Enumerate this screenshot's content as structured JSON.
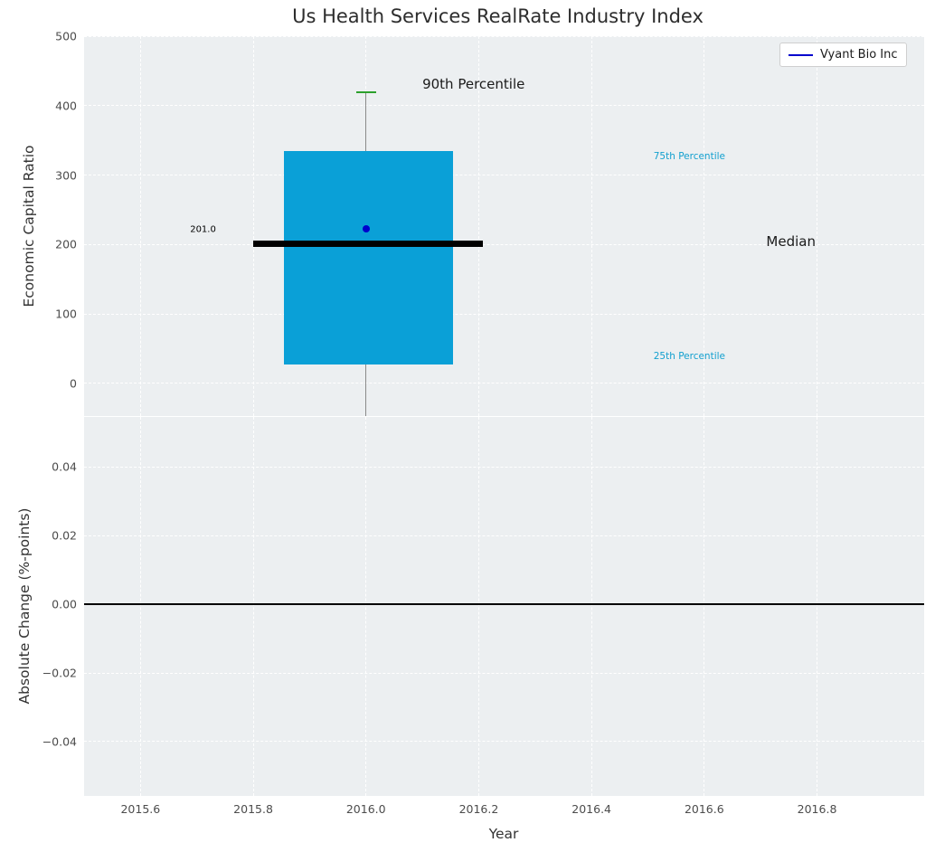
{
  "title": "Us Health Services RealRate Industry Index",
  "legend": {
    "label": "Vyant Bio Inc",
    "line_color": "#0000cd"
  },
  "colors": {
    "plot_bg": "#eceff1",
    "grid": "#ffffff",
    "box_fill": "#0aa0d7",
    "median_line": "#000000",
    "whisker": "#8a8a8a",
    "p90_cap": "#2ca02c",
    "company_point": "#0000cd",
    "percentile_text": "#13a0cf",
    "zero_line": "#000000"
  },
  "chart_data": [
    {
      "type": "boxplot",
      "title": "Us Health Services RealRate Industry Index",
      "ylabel": "Economic Capital Ratio",
      "legend_entry": "Vyant Bio Inc",
      "xlim": [
        2015.5,
        2016.99
      ],
      "ylim": [
        -47,
        500
      ],
      "yticks": [
        500,
        400,
        300,
        200,
        100,
        0
      ],
      "ytick_labels": [
        "500",
        "400",
        "300",
        "200",
        "100",
        "0"
      ],
      "grid": true,
      "box": {
        "x_center": 2016.0,
        "x_left": 2015.855,
        "x_right": 2016.155,
        "q1": 27,
        "median": 201.0,
        "q3": 335,
        "p90": 419,
        "whisker_extends_below_axis": true,
        "median_x_left": 2015.8,
        "median_x_right": 2016.207,
        "company_point": {
          "label": "Vyant Bio Inc",
          "x": 2016.0,
          "y": 223
        }
      },
      "annotations": [
        {
          "text": "201.0",
          "x": 2015.688,
          "y": 221,
          "color": "#000000",
          "size": 10
        },
        {
          "text": "90th Percentile",
          "x": 2016.1,
          "y": 431,
          "color": "#1a1a1a",
          "size": 15
        },
        {
          "text": "75th Percentile",
          "x": 2016.51,
          "y": 327,
          "color": "#13a0cf",
          "size": 10.5
        },
        {
          "text": "Median",
          "x": 2016.71,
          "y": 204,
          "color": "#1a1a1a",
          "size": 15
        },
        {
          "text": "25th Percentile",
          "x": 2016.51,
          "y": 39,
          "color": "#13a0cf",
          "size": 10.5
        }
      ]
    },
    {
      "type": "line",
      "ylabel": "Absolute Change (%-points)",
      "xlabel": "Year",
      "xlim": [
        2015.5,
        2016.99
      ],
      "ylim": [
        -0.0558,
        0.0545
      ],
      "yticks": [
        0.04,
        0.02,
        0,
        -0.02,
        -0.04
      ],
      "ytick_labels": [
        "0.04",
        "0.02",
        "0.00",
        "−0.02",
        "−0.04"
      ],
      "xticks": [
        2015.6,
        2015.8,
        2016.0,
        2016.2,
        2016.4,
        2016.6,
        2016.8
      ],
      "xtick_labels": [
        "2015.6",
        "2015.8",
        "2016.0",
        "2016.2",
        "2016.4",
        "2016.6",
        "2016.8"
      ],
      "grid": true,
      "zero_line_y": 0.0
    }
  ]
}
